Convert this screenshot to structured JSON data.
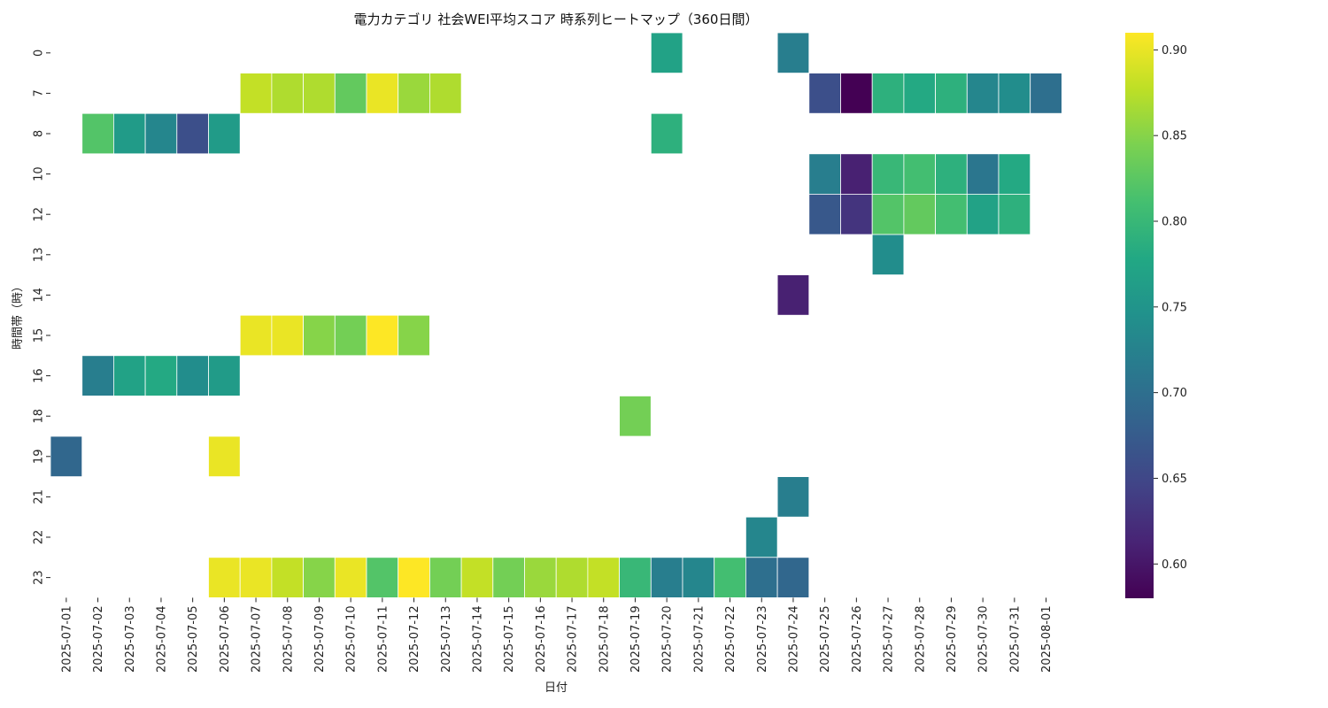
{
  "chart_data": {
    "type": "heatmap",
    "title": "電力カテゴリ 社会WEI平均スコア 時系列ヒートマップ（360日間）",
    "xlabel": "日付",
    "ylabel": "時間帯（時）",
    "x": [
      "2025-07-01",
      "2025-07-02",
      "2025-07-03",
      "2025-07-04",
      "2025-07-05",
      "2025-07-06",
      "2025-07-07",
      "2025-07-08",
      "2025-07-09",
      "2025-07-10",
      "2025-07-11",
      "2025-07-12",
      "2025-07-13",
      "2025-07-14",
      "2025-07-15",
      "2025-07-16",
      "2025-07-17",
      "2025-07-18",
      "2025-07-19",
      "2025-07-20",
      "2025-07-21",
      "2025-07-22",
      "2025-07-23",
      "2025-07-24",
      "2025-07-25",
      "2025-07-26",
      "2025-07-27",
      "2025-07-28",
      "2025-07-29",
      "2025-07-30",
      "2025-07-31",
      "2025-08-01"
    ],
    "y": [
      "0",
      "7",
      "8",
      "10",
      "12",
      "13",
      "14",
      "15",
      "16",
      "18",
      "19",
      "21",
      "22",
      "23"
    ],
    "values": [
      [
        null,
        null,
        null,
        null,
        null,
        null,
        null,
        null,
        null,
        null,
        null,
        null,
        null,
        null,
        null,
        null,
        null,
        null,
        null,
        0.77,
        null,
        null,
        null,
        0.72,
        null,
        null,
        null,
        null,
        null,
        null,
        null,
        null
      ],
      [
        null,
        null,
        null,
        null,
        null,
        null,
        0.88,
        0.87,
        0.87,
        0.83,
        0.9,
        0.86,
        0.87,
        null,
        null,
        null,
        null,
        null,
        null,
        null,
        null,
        null,
        null,
        null,
        0.66,
        0.58,
        0.79,
        0.78,
        0.79,
        0.73,
        0.74,
        0.7
      ],
      [
        null,
        0.82,
        0.76,
        0.73,
        0.66,
        0.76,
        null,
        null,
        null,
        null,
        null,
        null,
        null,
        null,
        null,
        null,
        null,
        null,
        null,
        0.79,
        null,
        null,
        null,
        null,
        null,
        null,
        null,
        null,
        null,
        null,
        null,
        null
      ],
      [
        null,
        null,
        null,
        null,
        null,
        null,
        null,
        null,
        null,
        null,
        null,
        null,
        null,
        null,
        null,
        null,
        null,
        null,
        null,
        null,
        null,
        null,
        null,
        null,
        0.72,
        0.61,
        0.8,
        0.81,
        0.79,
        0.71,
        0.78,
        null
      ],
      [
        null,
        null,
        null,
        null,
        null,
        null,
        null,
        null,
        null,
        null,
        null,
        null,
        null,
        null,
        null,
        null,
        null,
        null,
        null,
        null,
        null,
        null,
        null,
        null,
        0.67,
        0.63,
        0.82,
        0.83,
        0.81,
        0.77,
        0.79,
        null
      ],
      [
        null,
        null,
        null,
        null,
        null,
        null,
        null,
        null,
        null,
        null,
        null,
        null,
        null,
        null,
        null,
        null,
        null,
        null,
        null,
        null,
        null,
        null,
        null,
        null,
        null,
        null,
        0.74,
        null,
        null,
        null,
        null,
        null
      ],
      [
        null,
        null,
        null,
        null,
        null,
        null,
        null,
        null,
        null,
        null,
        null,
        null,
        null,
        null,
        null,
        null,
        null,
        null,
        null,
        null,
        null,
        null,
        null,
        0.61,
        null,
        null,
        null,
        null,
        null,
        null,
        null,
        null
      ],
      [
        null,
        null,
        null,
        null,
        null,
        null,
        0.9,
        0.9,
        0.85,
        0.84,
        0.91,
        0.85,
        null,
        null,
        null,
        null,
        null,
        null,
        null,
        null,
        null,
        null,
        null,
        null,
        null,
        null,
        null,
        null,
        null,
        null,
        null,
        null
      ],
      [
        null,
        0.72,
        0.77,
        0.78,
        0.74,
        0.76,
        null,
        null,
        null,
        null,
        null,
        null,
        null,
        null,
        null,
        null,
        null,
        null,
        null,
        null,
        null,
        null,
        null,
        null,
        null,
        null,
        null,
        null,
        null,
        null,
        null,
        null
      ],
      [
        null,
        null,
        null,
        null,
        null,
        null,
        null,
        null,
        null,
        null,
        null,
        null,
        null,
        null,
        null,
        null,
        null,
        null,
        0.84,
        null,
        null,
        null,
        null,
        null,
        null,
        null,
        null,
        null,
        null,
        null,
        null,
        null
      ],
      [
        0.69,
        null,
        null,
        null,
        null,
        0.9,
        null,
        null,
        null,
        null,
        null,
        null,
        null,
        null,
        null,
        null,
        null,
        null,
        null,
        null,
        null,
        null,
        null,
        null,
        null,
        null,
        null,
        null,
        null,
        null,
        null,
        null
      ],
      [
        null,
        null,
        null,
        null,
        null,
        null,
        null,
        null,
        null,
        null,
        null,
        null,
        null,
        null,
        null,
        null,
        null,
        null,
        null,
        null,
        null,
        null,
        null,
        0.72,
        null,
        null,
        null,
        null,
        null,
        null,
        null,
        null
      ],
      [
        null,
        null,
        null,
        null,
        null,
        null,
        null,
        null,
        null,
        null,
        null,
        null,
        null,
        null,
        null,
        null,
        null,
        null,
        null,
        null,
        null,
        null,
        0.73,
        null,
        null,
        null,
        null,
        null,
        null,
        null,
        null,
        null
      ],
      [
        null,
        null,
        null,
        null,
        null,
        0.9,
        0.9,
        0.88,
        0.85,
        0.9,
        0.82,
        0.91,
        0.84,
        0.88,
        0.84,
        0.86,
        0.87,
        0.88,
        0.8,
        0.72,
        0.73,
        0.81,
        0.7,
        0.69,
        null,
        null,
        null,
        null,
        null,
        null,
        null,
        null
      ]
    ],
    "colorbar": {
      "colormap": "viridis",
      "range": [
        0.58,
        0.91
      ],
      "ticks": [
        "0.60",
        "0.65",
        "0.70",
        "0.75",
        "0.80",
        "0.85",
        "0.90"
      ]
    },
    "grid": false,
    "legend": "right"
  }
}
